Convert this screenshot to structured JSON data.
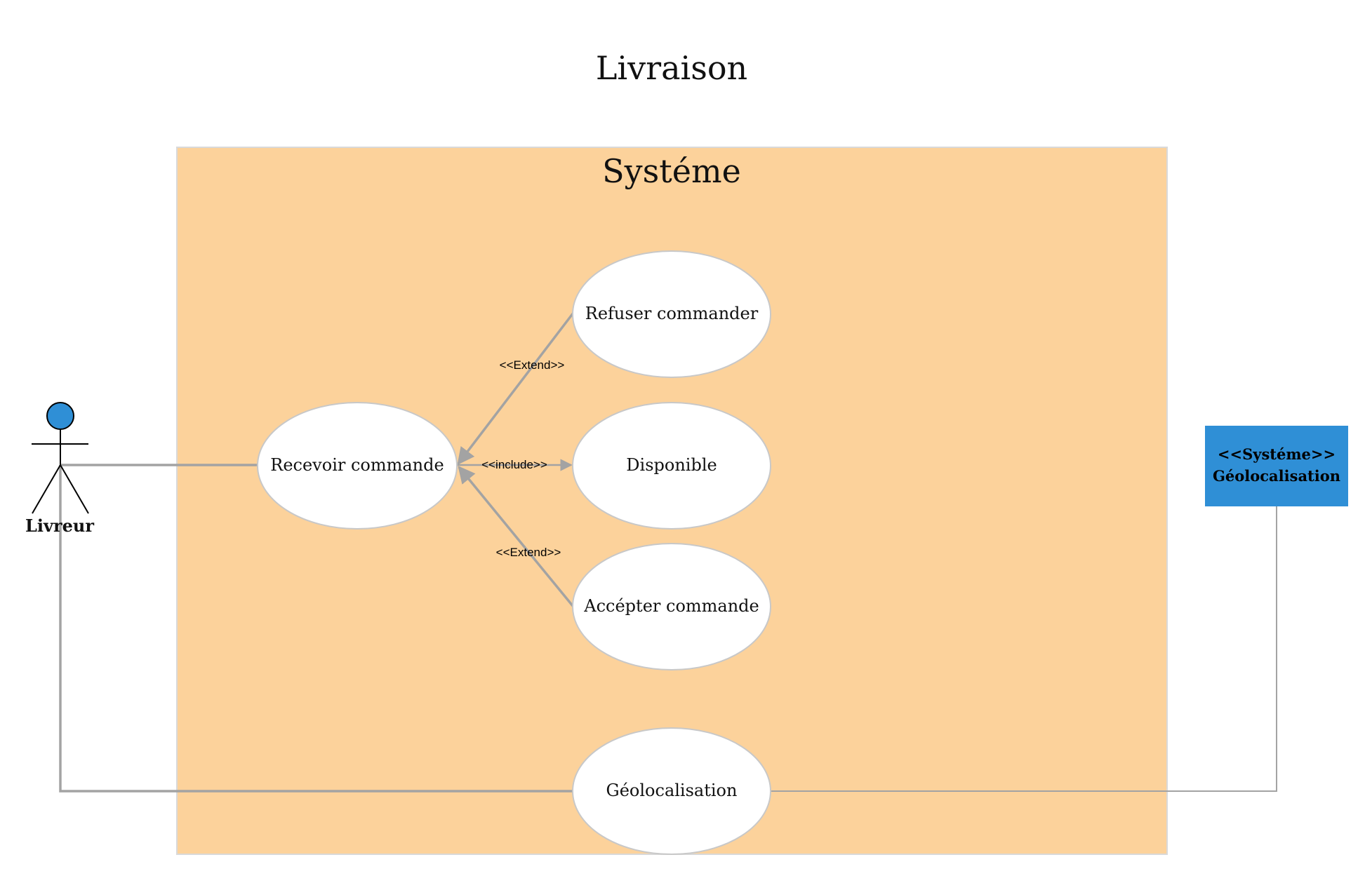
{
  "diagram": {
    "title": "Livraison",
    "system_boundary": {
      "label": "Systéme",
      "fill": "#fcd29b",
      "stroke": "#d9d9d9"
    },
    "actor": {
      "name": "Livreur",
      "head_color": "#2f8fd6"
    },
    "use_cases": {
      "recevoir": "Recevoir commande",
      "refuser": "Refuser commander",
      "disponible": "Disponible",
      "accepter": "Accépter commande",
      "geolocalisation": "Géolocalisation"
    },
    "relations": {
      "extend_top": "<<Extend>>",
      "include": "<<include>>",
      "extend_bottom": "<<Extend>>"
    },
    "external_system": {
      "stereotype": "<<Systéme>>",
      "name": "Géolocalisation",
      "fill": "#2f8fd6"
    },
    "colors": {
      "connector": "#a3a3a3",
      "ellipse_stroke": "#c8c8c8",
      "ellipse_fill": "#ffffff"
    }
  }
}
